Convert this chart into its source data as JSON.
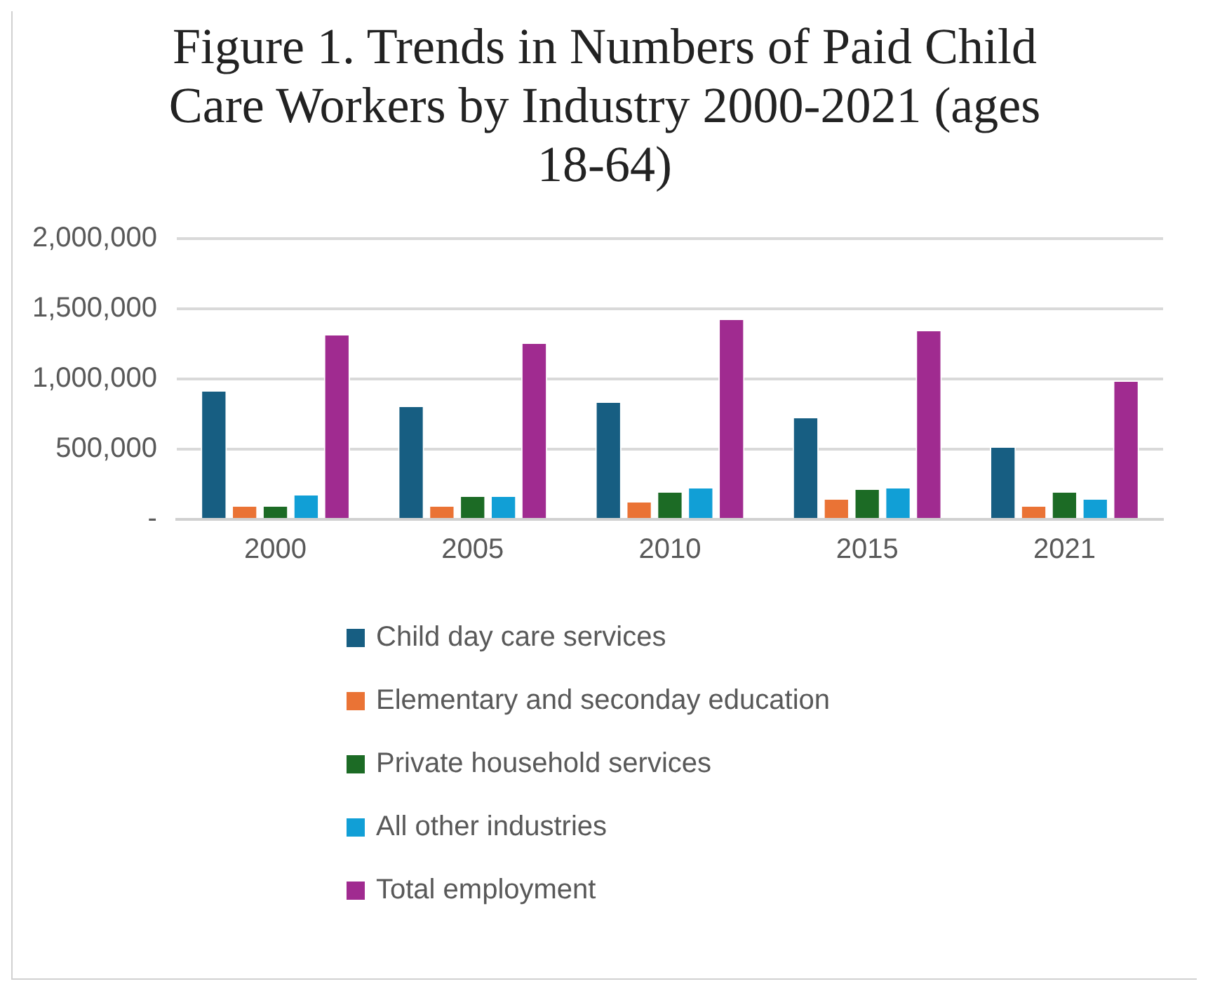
{
  "chart_data": {
    "type": "bar",
    "title": "Figure 1. Trends in Numbers of Paid Child Care Workers by Industry 2000-2021 (ages 18-64)",
    "categories": [
      "2000",
      "2005",
      "2010",
      "2015",
      "2021"
    ],
    "series": [
      {
        "name": "Child day care services",
        "color": "#175e82",
        "values": [
          920000,
          810000,
          840000,
          730000,
          520000
        ]
      },
      {
        "name": "Elementary and seconday education",
        "color": "#ea7335",
        "values": [
          100000,
          100000,
          130000,
          150000,
          100000
        ]
      },
      {
        "name": "Private household services",
        "color": "#1c6b25",
        "values": [
          100000,
          170000,
          200000,
          220000,
          200000
        ]
      },
      {
        "name": "All other industries",
        "color": "#119fd6",
        "values": [
          180000,
          170000,
          230000,
          230000,
          150000
        ]
      },
      {
        "name": "Total employment",
        "color": "#a02b90",
        "values": [
          1320000,
          1260000,
          1430000,
          1350000,
          990000
        ]
      }
    ],
    "ylim": [
      0,
      2000000
    ],
    "yticks": [
      {
        "value": 0,
        "label": "-"
      },
      {
        "value": 500000,
        "label": "500,000"
      },
      {
        "value": 1000000,
        "label": "1,000,000"
      },
      {
        "value": 1500000,
        "label": "1,500,000"
      },
      {
        "value": 2000000,
        "label": "2,000,000"
      }
    ],
    "grid": "y",
    "legend": "bottom"
  }
}
